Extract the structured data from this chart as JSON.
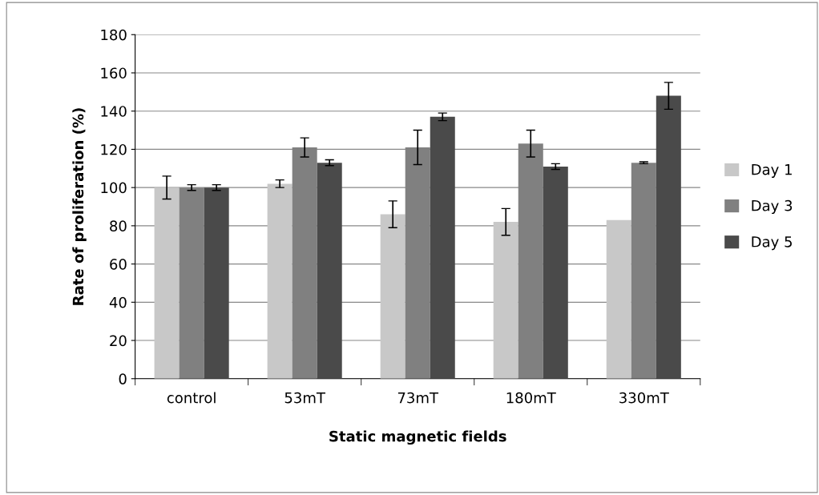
{
  "chart_data": {
    "type": "bar",
    "xlabel": "Static magnetic fields",
    "ylabel": "Rate of proliferation (%)",
    "categories": [
      "control",
      "53mT",
      "73mT",
      "180mT",
      "330mT"
    ],
    "series": [
      {
        "name": "Day 1",
        "color": "#c8c8c8",
        "values": [
          100,
          102,
          86,
          82,
          83
        ],
        "errors": [
          6,
          2,
          7,
          7,
          null
        ]
      },
      {
        "name": "Day 3",
        "color": "#808080",
        "values": [
          100,
          121,
          121,
          123,
          113
        ],
        "errors": [
          1.5,
          5,
          9,
          7,
          0.5
        ]
      },
      {
        "name": "Day 5",
        "color": "#4a4a4a",
        "values": [
          100,
          113,
          137,
          111,
          148
        ],
        "errors": [
          1.5,
          1.5,
          2,
          1.5,
          7
        ]
      }
    ],
    "ylim": [
      0,
      180
    ],
    "yticks": [
      0,
      20,
      40,
      60,
      80,
      100,
      120,
      140,
      160,
      180
    ],
    "grid": "y",
    "legend": "right"
  }
}
